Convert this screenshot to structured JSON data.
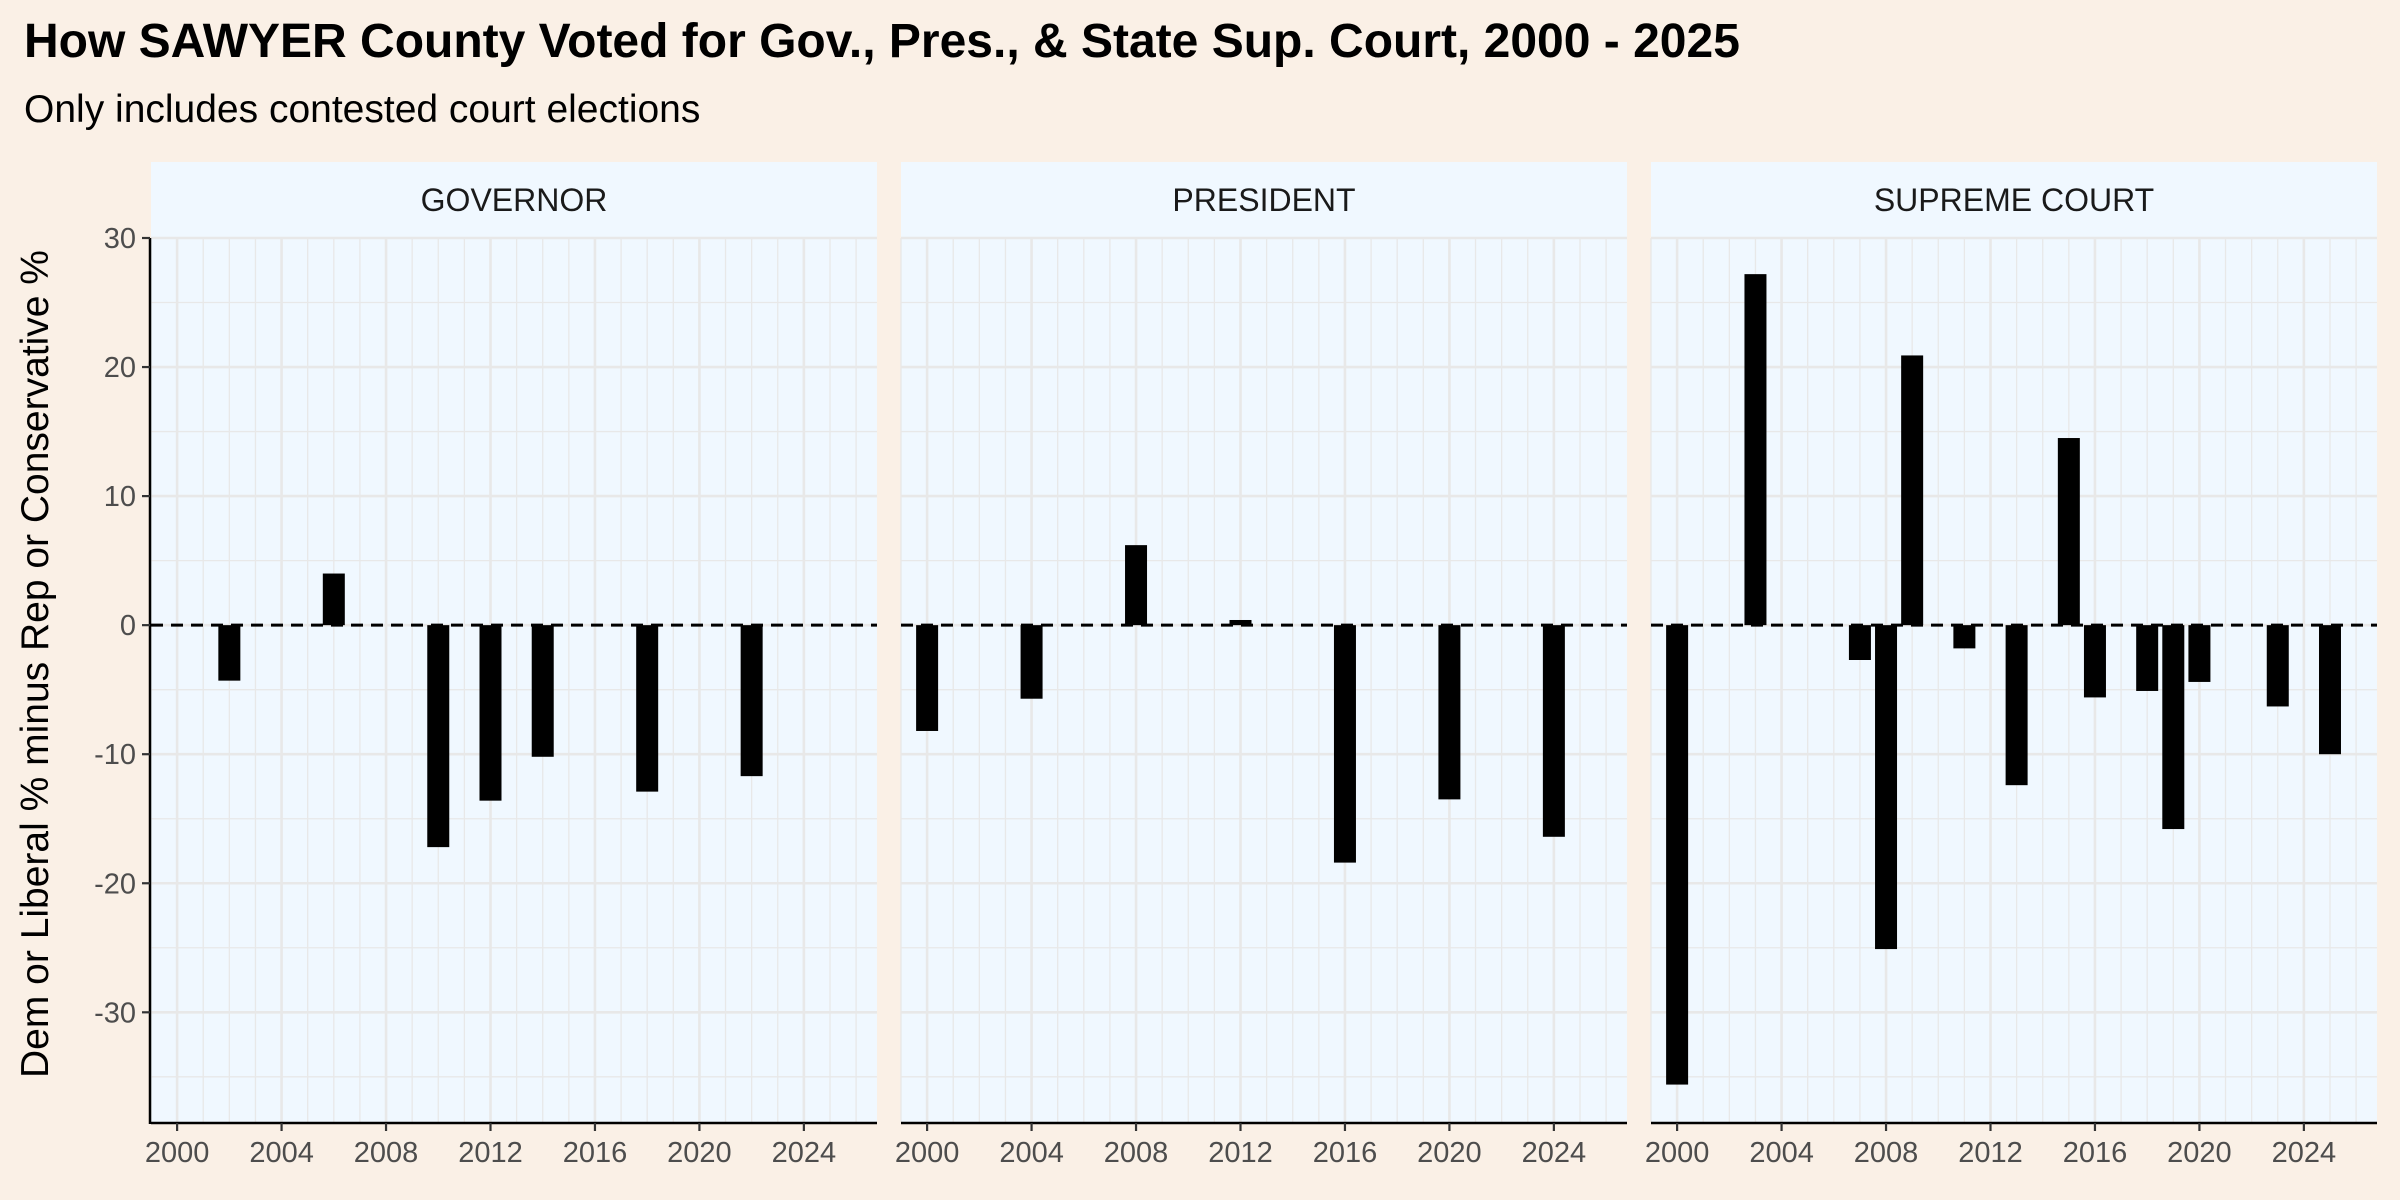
{
  "title": "How SAWYER County Voted for Gov., Pres., & State Sup. Court, 2000 - 2025",
  "subtitle": "Only includes contested court elections",
  "colors": {
    "page_background": "#FAF0E6",
    "panel_background": "#F0F8FF",
    "bar": "#000000",
    "grid": "#E8E8E8"
  },
  "chart_data": {
    "type": "bar",
    "ylabel": "Dem or Liberal % minus Rep or Conservative %",
    "xlabel": "",
    "ylim": [
      -38.5,
      30
    ],
    "xlim": [
      1999,
      2026.8
    ],
    "y_ticks": [
      30,
      20,
      10,
      0,
      -10,
      -20,
      -30
    ],
    "x_ticks": [
      2000,
      2004,
      2008,
      2012,
      2016,
      2020,
      2024
    ],
    "reference_line": 0,
    "grid": true,
    "panels": [
      {
        "name": "GOVERNOR",
        "bars": [
          {
            "x": 2002,
            "y": -4.3
          },
          {
            "x": 2006,
            "y": 4.0
          },
          {
            "x": 2010,
            "y": -17.2
          },
          {
            "x": 2012,
            "y": -13.6
          },
          {
            "x": 2014,
            "y": -10.2
          },
          {
            "x": 2018,
            "y": -12.9
          },
          {
            "x": 2022,
            "y": -11.7
          }
        ]
      },
      {
        "name": "PRESIDENT",
        "bars": [
          {
            "x": 2000,
            "y": -8.2
          },
          {
            "x": 2004,
            "y": -5.7
          },
          {
            "x": 2008,
            "y": 6.2
          },
          {
            "x": 2012,
            "y": 0.4
          },
          {
            "x": 2016,
            "y": -18.4
          },
          {
            "x": 2020,
            "y": -13.5
          },
          {
            "x": 2024,
            "y": -16.4
          }
        ]
      },
      {
        "name": "SUPREME COURT",
        "bars": [
          {
            "x": 2000,
            "y": -35.6
          },
          {
            "x": 2003,
            "y": 27.2
          },
          {
            "x": 2007,
            "y": -2.7
          },
          {
            "x": 2008,
            "y": -25.1
          },
          {
            "x": 2009,
            "y": 20.9
          },
          {
            "x": 2011,
            "y": -1.8
          },
          {
            "x": 2013,
            "y": -12.4
          },
          {
            "x": 2015,
            "y": 14.5
          },
          {
            "x": 2016,
            "y": -5.6
          },
          {
            "x": 2018,
            "y": -5.1
          },
          {
            "x": 2019,
            "y": -15.8
          },
          {
            "x": 2020,
            "y": -4.4
          },
          {
            "x": 2023,
            "y": -6.3
          },
          {
            "x": 2025,
            "y": -10.0
          }
        ]
      }
    ]
  }
}
